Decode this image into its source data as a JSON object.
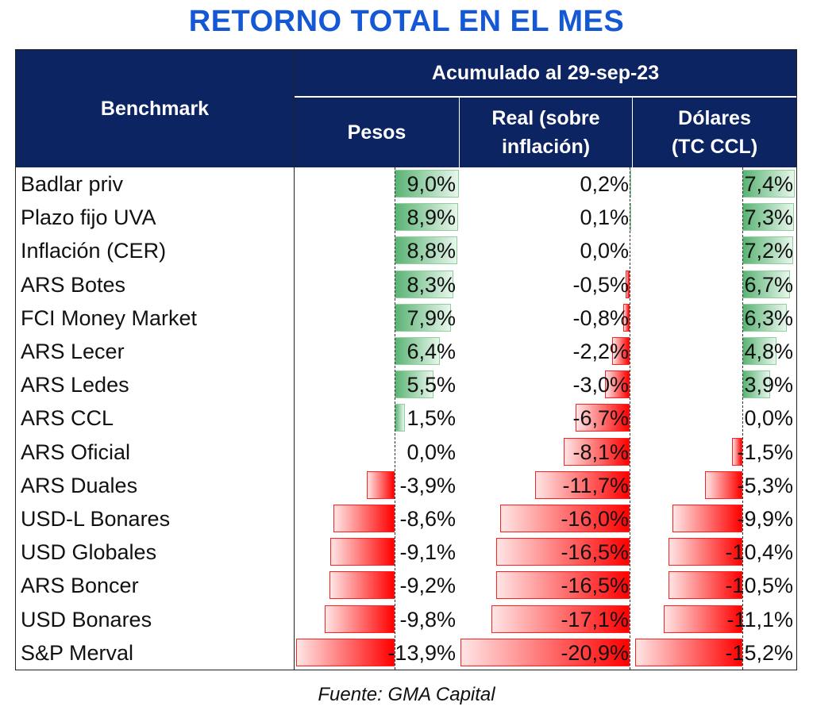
{
  "title": "RETORNO TOTAL EN EL MES",
  "source": "Fuente: GMA Capital",
  "colors": {
    "header_bg": "#0c2461",
    "title": "#1558d6",
    "positive_bar": "#5ab374",
    "negative_bar": "#ff0000"
  },
  "chart_data": {
    "type": "table",
    "header": {
      "benchmark": "Benchmark",
      "group": "Acumulado al 29-sep-23",
      "columns": [
        "Pesos",
        "Real (sobre inflación)",
        "Dólares (TC CCL)"
      ]
    },
    "rows": [
      {
        "name": "Badlar priv",
        "values": [
          9.0,
          0.2,
          7.4
        ],
        "labels": [
          "9,0%",
          "0,2%",
          "7,4%"
        ]
      },
      {
        "name": "Plazo fijo UVA",
        "values": [
          8.9,
          0.1,
          7.3
        ],
        "labels": [
          "8,9%",
          "0,1%",
          "7,3%"
        ]
      },
      {
        "name": "Inflación (CER)",
        "values": [
          8.8,
          0.0,
          7.2
        ],
        "labels": [
          "8,8%",
          "0,0%",
          "7,2%"
        ]
      },
      {
        "name": "ARS Botes",
        "values": [
          8.3,
          -0.5,
          6.7
        ],
        "labels": [
          "8,3%",
          "-0,5%",
          "6,7%"
        ]
      },
      {
        "name": "FCI Money Market",
        "values": [
          7.9,
          -0.8,
          6.3
        ],
        "labels": [
          "7,9%",
          "-0,8%",
          "6,3%"
        ]
      },
      {
        "name": "ARS Lecer",
        "values": [
          6.4,
          -2.2,
          4.8
        ],
        "labels": [
          "6,4%",
          "-2,2%",
          "4,8%"
        ]
      },
      {
        "name": "ARS Ledes",
        "values": [
          5.5,
          -3.0,
          3.9
        ],
        "labels": [
          "5,5%",
          "-3,0%",
          "3,9%"
        ]
      },
      {
        "name": "ARS CCL",
        "values": [
          1.5,
          -6.7,
          0.0
        ],
        "labels": [
          "1,5%",
          "-6,7%",
          "0,0%"
        ]
      },
      {
        "name": "ARS Oficial",
        "values": [
          0.0,
          -8.1,
          -1.5
        ],
        "labels": [
          "0,0%",
          "-8,1%",
          "-1,5%"
        ]
      },
      {
        "name": "ARS Duales",
        "values": [
          -3.9,
          -11.7,
          -5.3
        ],
        "labels": [
          "-3,9%",
          "-11,7%",
          "-5,3%"
        ]
      },
      {
        "name": "USD-L Bonares",
        "values": [
          -8.6,
          -16.0,
          -9.9
        ],
        "labels": [
          "-8,6%",
          "-16,0%",
          "-9,9%"
        ]
      },
      {
        "name": "USD Globales",
        "values": [
          -9.1,
          -16.5,
          -10.4
        ],
        "labels": [
          "-9,1%",
          "-16,5%",
          "-10,4%"
        ]
      },
      {
        "name": "ARS Boncer",
        "values": [
          -9.2,
          -16.5,
          -10.5
        ],
        "labels": [
          "-9,2%",
          "-16,5%",
          "-10,5%"
        ]
      },
      {
        "name": "USD Bonares",
        "values": [
          -9.8,
          -17.1,
          -11.1
        ],
        "labels": [
          "-9,8%",
          "-17,1%",
          "-11,1%"
        ]
      },
      {
        "name": "S&P Merval",
        "values": [
          -13.9,
          -20.9,
          -15.2
        ],
        "labels": [
          "-13,9%",
          "-20,9%",
          "-15,2%"
        ]
      }
    ]
  }
}
